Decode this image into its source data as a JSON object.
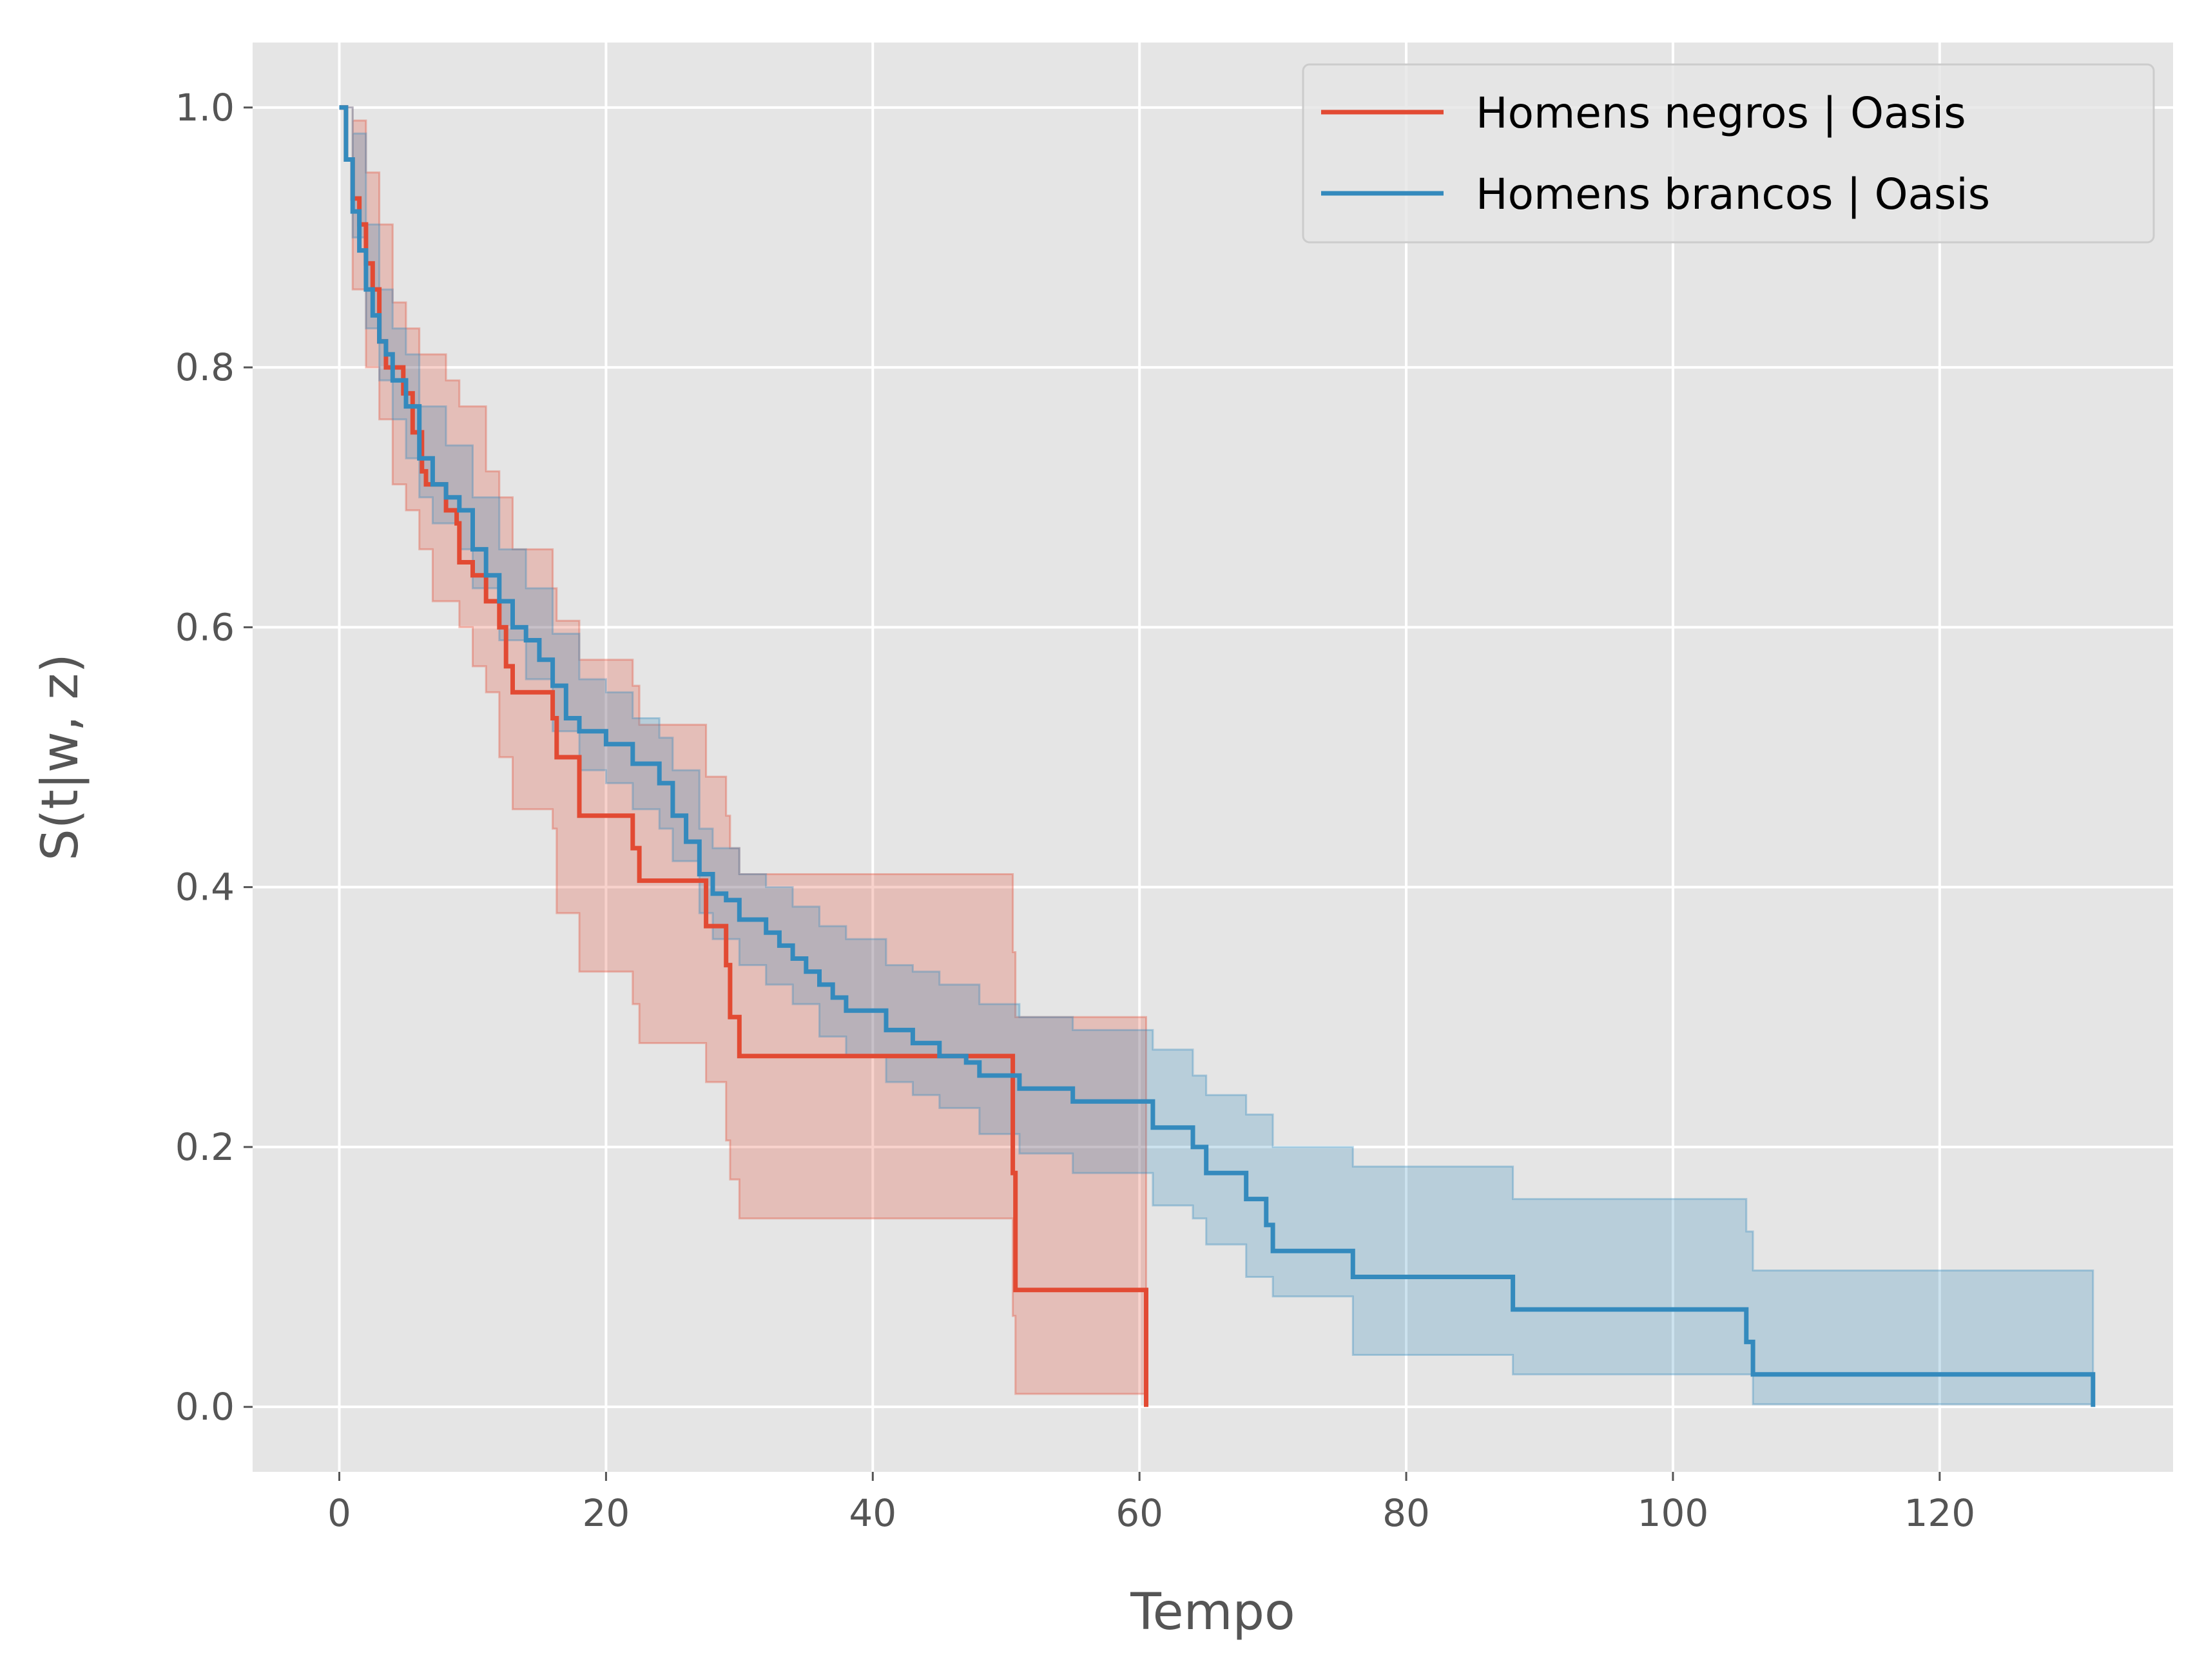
{
  "chart_data": {
    "type": "line",
    "xlabel": "Tempo",
    "ylabel": "S(t|w, z)",
    "xlim": [
      -6.5,
      137.5
    ],
    "ylim": [
      -0.05,
      1.05
    ],
    "x_ticks": [
      0,
      20,
      40,
      60,
      80,
      100,
      120
    ],
    "y_ticks": [
      0.0,
      0.2,
      0.4,
      0.6,
      0.8,
      1.0
    ],
    "x_tick_labels": [
      "0",
      "20",
      "40",
      "60",
      "80",
      "100",
      "120"
    ],
    "y_tick_labels": [
      "0.0",
      "0.2",
      "0.4",
      "0.6",
      "0.8",
      "1.0"
    ],
    "grid": true,
    "legend_position": "top-right",
    "step": true,
    "series": [
      {
        "name": "Homens negros | Oasis",
        "color": "#E24A33",
        "points": [
          [
            0,
            1.0
          ],
          [
            0.5,
            0.96
          ],
          [
            1.0,
            0.93
          ],
          [
            1.5,
            0.91
          ],
          [
            2.0,
            0.88
          ],
          [
            2.5,
            0.86
          ],
          [
            3.0,
            0.82
          ],
          [
            3.5,
            0.8
          ],
          [
            4.0,
            0.8
          ],
          [
            4.8,
            0.78
          ],
          [
            5.5,
            0.75
          ],
          [
            6.2,
            0.72
          ],
          [
            6.5,
            0.71
          ],
          [
            8.0,
            0.69
          ],
          [
            8.8,
            0.68
          ],
          [
            9.0,
            0.65
          ],
          [
            10.0,
            0.64
          ],
          [
            11.0,
            0.62
          ],
          [
            12.0,
            0.6
          ],
          [
            12.5,
            0.57
          ],
          [
            13.0,
            0.55
          ],
          [
            16.0,
            0.53
          ],
          [
            16.3,
            0.5
          ],
          [
            18.0,
            0.455
          ],
          [
            22.0,
            0.43
          ],
          [
            22.5,
            0.405
          ],
          [
            27.5,
            0.37
          ],
          [
            29.0,
            0.34
          ],
          [
            29.3,
            0.3
          ],
          [
            30.0,
            0.27
          ],
          [
            50.5,
            0.18
          ],
          [
            50.7,
            0.09
          ],
          [
            60.5,
            0.0
          ]
        ],
        "ci_lower": [
          [
            0,
            1.0
          ],
          [
            1.0,
            0.86
          ],
          [
            2.0,
            0.8
          ],
          [
            3.0,
            0.76
          ],
          [
            4.0,
            0.71
          ],
          [
            5.0,
            0.69
          ],
          [
            6.0,
            0.66
          ],
          [
            7.0,
            0.62
          ],
          [
            9.0,
            0.6
          ],
          [
            10.0,
            0.57
          ],
          [
            11.0,
            0.55
          ],
          [
            12.0,
            0.5
          ],
          [
            13.0,
            0.46
          ],
          [
            16.0,
            0.445
          ],
          [
            16.3,
            0.38
          ],
          [
            18.0,
            0.335
          ],
          [
            22.0,
            0.31
          ],
          [
            22.5,
            0.28
          ],
          [
            27.5,
            0.25
          ],
          [
            29.0,
            0.205
          ],
          [
            29.3,
            0.175
          ],
          [
            30.0,
            0.145
          ],
          [
            50.5,
            0.07
          ],
          [
            50.7,
            0.01
          ],
          [
            60.5,
            0.01
          ]
        ],
        "ci_upper": [
          [
            0,
            1.0
          ],
          [
            1.0,
            0.99
          ],
          [
            2.0,
            0.95
          ],
          [
            3.0,
            0.91
          ],
          [
            4.0,
            0.85
          ],
          [
            5.0,
            0.83
          ],
          [
            6.0,
            0.81
          ],
          [
            8.0,
            0.79
          ],
          [
            9.0,
            0.77
          ],
          [
            11.0,
            0.72
          ],
          [
            12.0,
            0.7
          ],
          [
            13.0,
            0.66
          ],
          [
            16.0,
            0.63
          ],
          [
            16.3,
            0.605
          ],
          [
            18.0,
            0.575
          ],
          [
            22.0,
            0.555
          ],
          [
            22.5,
            0.525
          ],
          [
            27.5,
            0.485
          ],
          [
            29.0,
            0.455
          ],
          [
            29.3,
            0.43
          ],
          [
            30.0,
            0.41
          ],
          [
            50.5,
            0.35
          ],
          [
            50.7,
            0.3
          ],
          [
            60.5,
            0.3
          ]
        ]
      },
      {
        "name": "Homens brancos | Oasis",
        "color": "#348ABD",
        "points": [
          [
            0,
            1.0
          ],
          [
            0.5,
            0.96
          ],
          [
            1.0,
            0.92
          ],
          [
            1.5,
            0.89
          ],
          [
            2.0,
            0.86
          ],
          [
            2.5,
            0.84
          ],
          [
            3.0,
            0.82
          ],
          [
            3.5,
            0.81
          ],
          [
            4.0,
            0.79
          ],
          [
            5.0,
            0.77
          ],
          [
            6.0,
            0.73
          ],
          [
            7.0,
            0.71
          ],
          [
            8.0,
            0.7
          ],
          [
            9.0,
            0.69
          ],
          [
            10.0,
            0.66
          ],
          [
            11.0,
            0.64
          ],
          [
            12.0,
            0.62
          ],
          [
            13.0,
            0.6
          ],
          [
            14.0,
            0.59
          ],
          [
            15.0,
            0.575
          ],
          [
            16.0,
            0.555
          ],
          [
            17.0,
            0.53
          ],
          [
            18.0,
            0.52
          ],
          [
            20.0,
            0.51
          ],
          [
            22.0,
            0.495
          ],
          [
            24.0,
            0.48
          ],
          [
            25.0,
            0.455
          ],
          [
            26.0,
            0.435
          ],
          [
            27.0,
            0.41
          ],
          [
            28.0,
            0.395
          ],
          [
            29.0,
            0.39
          ],
          [
            30.0,
            0.375
          ],
          [
            32.0,
            0.365
          ],
          [
            33.0,
            0.355
          ],
          [
            34.0,
            0.345
          ],
          [
            35.0,
            0.335
          ],
          [
            36.0,
            0.325
          ],
          [
            37.0,
            0.315
          ],
          [
            38.0,
            0.305
          ],
          [
            41.0,
            0.29
          ],
          [
            43.0,
            0.28
          ],
          [
            45.0,
            0.27
          ],
          [
            47.0,
            0.265
          ],
          [
            48.0,
            0.255
          ],
          [
            51.0,
            0.245
          ],
          [
            55.0,
            0.235
          ],
          [
            61.0,
            0.215
          ],
          [
            64.0,
            0.2
          ],
          [
            65.0,
            0.18
          ],
          [
            68.0,
            0.16
          ],
          [
            69.5,
            0.14
          ],
          [
            70.0,
            0.12
          ],
          [
            76.0,
            0.1
          ],
          [
            88.0,
            0.075
          ],
          [
            105.5,
            0.05
          ],
          [
            106.0,
            0.025
          ],
          [
            131.5,
            0.0
          ]
        ],
        "ci_lower": [
          [
            0,
            1.0
          ],
          [
            1.0,
            0.9
          ],
          [
            2.0,
            0.83
          ],
          [
            3.0,
            0.79
          ],
          [
            4.0,
            0.76
          ],
          [
            5.0,
            0.73
          ],
          [
            6.0,
            0.7
          ],
          [
            7.0,
            0.68
          ],
          [
            9.0,
            0.66
          ],
          [
            10.0,
            0.63
          ],
          [
            12.0,
            0.59
          ],
          [
            14.0,
            0.56
          ],
          [
            16.0,
            0.52
          ],
          [
            18.0,
            0.49
          ],
          [
            20.0,
            0.48
          ],
          [
            22.0,
            0.46
          ],
          [
            24.0,
            0.445
          ],
          [
            25.0,
            0.42
          ],
          [
            27.0,
            0.38
          ],
          [
            28.0,
            0.36
          ],
          [
            30.0,
            0.34
          ],
          [
            32.0,
            0.325
          ],
          [
            34.0,
            0.31
          ],
          [
            36.0,
            0.285
          ],
          [
            38.0,
            0.27
          ],
          [
            41.0,
            0.25
          ],
          [
            43.0,
            0.24
          ],
          [
            45.0,
            0.23
          ],
          [
            48.0,
            0.21
          ],
          [
            51.0,
            0.195
          ],
          [
            55.0,
            0.18
          ],
          [
            61.0,
            0.155
          ],
          [
            64.0,
            0.145
          ],
          [
            65.0,
            0.125
          ],
          [
            68.0,
            0.1
          ],
          [
            70.0,
            0.085
          ],
          [
            76.0,
            0.04
          ],
          [
            88.0,
            0.025
          ],
          [
            106.0,
            0.002
          ],
          [
            131.5,
            0.002
          ]
        ],
        "ci_upper": [
          [
            0,
            1.0
          ],
          [
            1.0,
            0.98
          ],
          [
            2.0,
            0.91
          ],
          [
            3.0,
            0.86
          ],
          [
            4.0,
            0.83
          ],
          [
            5.0,
            0.81
          ],
          [
            6.0,
            0.77
          ],
          [
            8.0,
            0.74
          ],
          [
            10.0,
            0.7
          ],
          [
            12.0,
            0.66
          ],
          [
            14.0,
            0.63
          ],
          [
            16.0,
            0.595
          ],
          [
            18.0,
            0.56
          ],
          [
            20.0,
            0.55
          ],
          [
            22.0,
            0.53
          ],
          [
            24.0,
            0.515
          ],
          [
            25.0,
            0.49
          ],
          [
            27.0,
            0.445
          ],
          [
            28.0,
            0.43
          ],
          [
            30.0,
            0.41
          ],
          [
            32.0,
            0.4
          ],
          [
            34.0,
            0.385
          ],
          [
            36.0,
            0.37
          ],
          [
            38.0,
            0.36
          ],
          [
            41.0,
            0.34
          ],
          [
            43.0,
            0.335
          ],
          [
            45.0,
            0.325
          ],
          [
            48.0,
            0.31
          ],
          [
            51.0,
            0.3
          ],
          [
            55.0,
            0.29
          ],
          [
            61.0,
            0.275
          ],
          [
            64.0,
            0.255
          ],
          [
            65.0,
            0.24
          ],
          [
            68.0,
            0.225
          ],
          [
            70.0,
            0.2
          ],
          [
            76.0,
            0.185
          ],
          [
            88.0,
            0.16
          ],
          [
            105.5,
            0.135
          ],
          [
            106.0,
            0.105
          ],
          [
            131.5,
            0.105
          ]
        ]
      }
    ]
  }
}
